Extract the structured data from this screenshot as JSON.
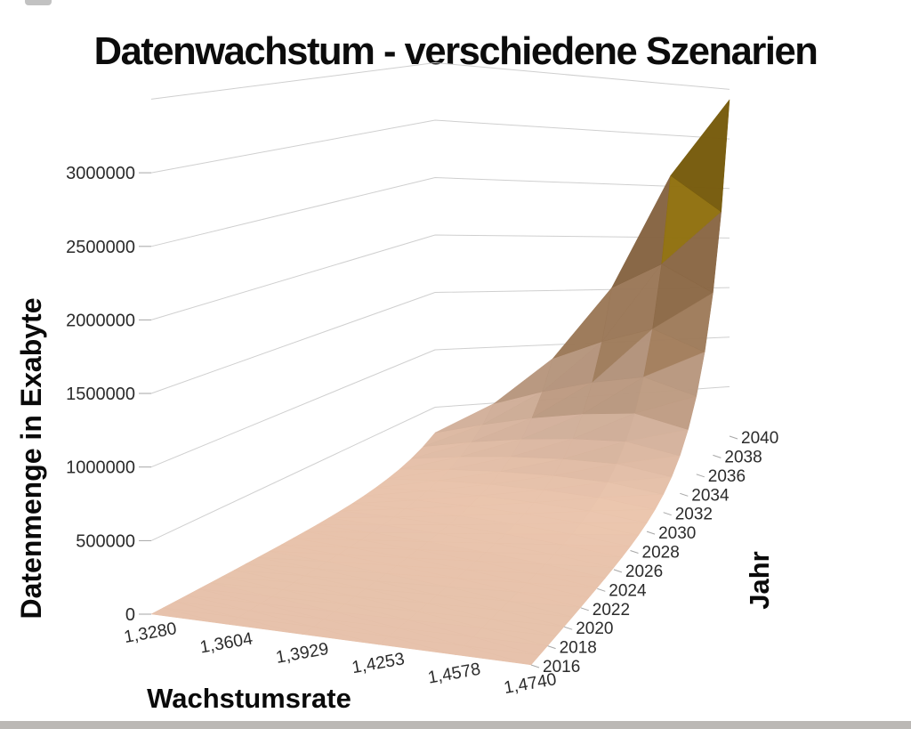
{
  "header": {
    "title": "Datenwachstum - verschiedene Szenarien"
  },
  "chart_data": {
    "type": "surface",
    "title": "Datenwachstum - verschiedene Szenarien",
    "xlabel": "Wachstumsrate",
    "ylabel": "Datenmenge in Exabyte",
    "zlabel": "Jahr",
    "unit": "Exabyte",
    "legend": "none",
    "grid": true,
    "x_tick_labels": [
      "1,3280",
      "1,3604",
      "1,3929",
      "1,4253",
      "1,4578",
      "1,4740"
    ],
    "growth_rates": [
      1.328,
      1.3604,
      1.3929,
      1.4253,
      1.4578,
      1.474
    ],
    "year_start": 2016,
    "year_end": 2040,
    "year_tick_step": 2,
    "year_tick_labels": [
      "2016",
      "2018",
      "2020",
      "2022",
      "2024",
      "2026",
      "2028",
      "2030",
      "2032",
      "2034",
      "2036",
      "2038",
      "2040"
    ],
    "value_ticks": [
      {
        "value": 0,
        "label": "0"
      },
      {
        "value": 500000,
        "label": "500000"
      },
      {
        "value": 1000000,
        "label": "1000000"
      },
      {
        "value": 1500000,
        "label": "1500000"
      },
      {
        "value": 2000000,
        "label": "2000000"
      },
      {
        "value": 2500000,
        "label": "2500000"
      },
      {
        "value": 3000000,
        "label": "3000000"
      }
    ],
    "value_axis_max": 3500000,
    "band_size": 500000,
    "base_value_2016": 307,
    "values_estimated": true,
    "peak_value": 3397109,
    "series": [
      {
        "rate_label": "1,3280",
        "rate": 1.328,
        "values_at_year_ticks": [
          307,
          541,
          955,
          1684,
          2970,
          5238,
          9239,
          16293,
          28735,
          50685,
          89398,
          157645,
          277972
        ]
      },
      {
        "rate_label": "1,3604",
        "rate": 1.3604,
        "values_at_year_ticks": [
          307,
          568,
          1052,
          1946,
          3601,
          6665,
          12335,
          22827,
          42245,
          78184,
          144689,
          267787,
          495621
        ]
      },
      {
        "rate_label": "1,3929",
        "rate": 1.3929,
        "values_at_year_ticks": [
          307,
          596,
          1156,
          2242,
          4350,
          8440,
          16375,
          31770,
          61640,
          119592,
          232030,
          450191,
          873476
        ]
      },
      {
        "rate_label": "1,4253",
        "rate": 1.4253,
        "values_at_year_ticks": [
          307,
          624,
          1267,
          2574,
          5229,
          10624,
          21583,
          43847,
          89078,
          180973,
          367663,
          746940,
          1516918
        ]
      },
      {
        "rate_label": "1,4578",
        "rate": 1.4578,
        "values_at_year_ticks": [
          307,
          652,
          1387,
          2947,
          6262,
          13310,
          28287,
          60117,
          127763,
          271535,
          577092,
          1226444,
          2606430
        ]
      },
      {
        "rate_label": "1,4740",
        "rate": 1.474,
        "values_at_year_ticks": [
          307,
          667,
          1449,
          3149,
          6841,
          14864,
          32296,
          70169,
          152461,
          331253,
          719731,
          1563781,
          3397109
        ]
      }
    ],
    "band_colors": [
      "#e8c2aa",
      "#d8b194",
      "#bf946c",
      "#a87e53",
      "#b28a10",
      "#93700c",
      "#a87c06"
    ],
    "grid_color": "#cfcfcf",
    "tick_color": "#a6a6a6",
    "text_color": "#2b2b2b",
    "axis_title_color": "#0a0a0a"
  },
  "artifacts": {
    "bottom_strip_color": "#b4b0ad",
    "top_smudge_color": "#8f8f8f"
  }
}
